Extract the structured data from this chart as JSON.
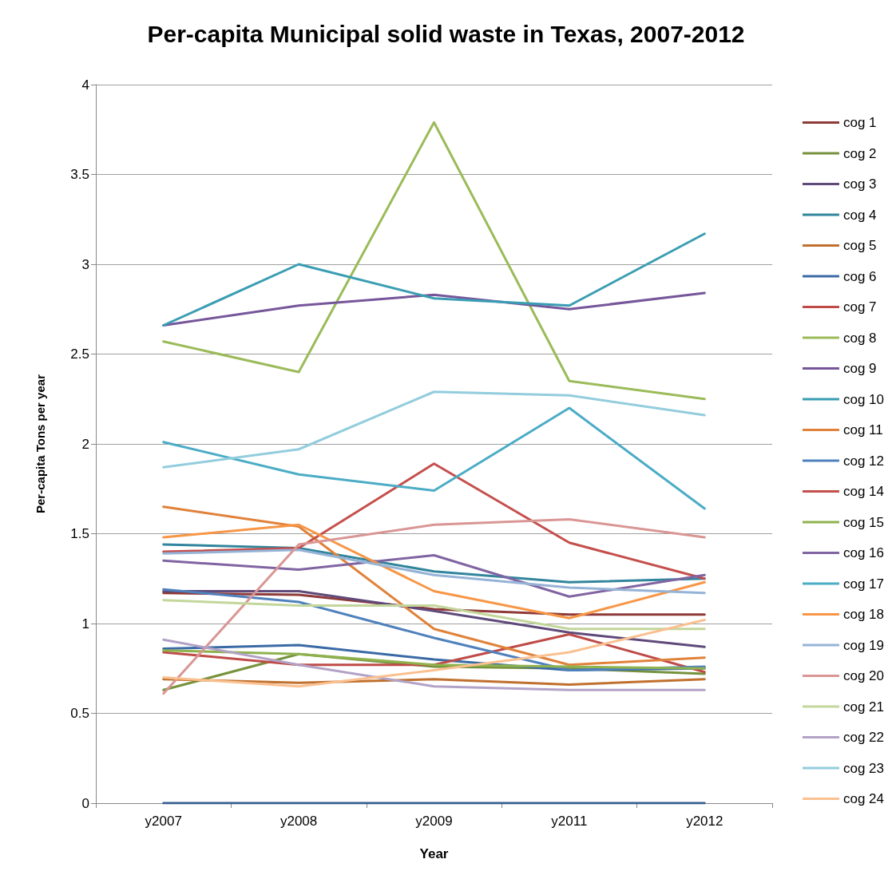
{
  "chart_data": {
    "type": "line",
    "title": "Per-capita Municipal solid waste in Texas, 2007-2012",
    "xlabel": "Year",
    "ylabel": "Per-capita Tons per year",
    "categories": [
      "y2007",
      "y2008",
      "y2009",
      "y2011",
      "y2012"
    ],
    "ylim": [
      0,
      4
    ],
    "yticks": [
      0,
      0.5,
      1,
      1.5,
      2,
      2.5,
      3,
      3.5,
      4
    ],
    "grid": "y",
    "legend": "right",
    "line_style": "solid",
    "series": [
      {
        "name": "cog 1",
        "color": "#8e3a38",
        "values": [
          1.17,
          1.16,
          1.08,
          1.05,
          1.05
        ]
      },
      {
        "name": "cog 2",
        "color": "#76923c",
        "values": [
          0.63,
          0.83,
          0.76,
          0.75,
          0.72
        ]
      },
      {
        "name": "cog 3",
        "color": "#5f4a7a",
        "values": [
          1.18,
          1.18,
          1.07,
          0.95,
          0.87
        ]
      },
      {
        "name": "cog 4",
        "color": "#31859c",
        "values": [
          1.44,
          1.42,
          1.29,
          1.23,
          1.25
        ]
      },
      {
        "name": "cog 5",
        "color": "#c0702e",
        "values": [
          0.69,
          0.67,
          0.69,
          0.66,
          0.69
        ]
      },
      {
        "name": "cog 6",
        "color": "#3a6aa6",
        "values": [
          0.86,
          0.88,
          0.8,
          0.74,
          0.75
        ]
      },
      {
        "name": "cog 7",
        "color": "#be4b48",
        "values": [
          0.84,
          0.77,
          0.77,
          0.94,
          0.73
        ]
      },
      {
        "name": "cog 8",
        "color": "#9bbb59",
        "values": [
          2.57,
          2.4,
          3.79,
          2.35,
          2.25
        ]
      },
      {
        "name": "cog 9",
        "color": "#76569a",
        "values": [
          2.66,
          2.77,
          2.83,
          2.75,
          2.84
        ]
      },
      {
        "name": "cog 10",
        "color": "#3a9db3",
        "values": [
          2.66,
          3.0,
          2.81,
          2.77,
          3.17
        ]
      },
      {
        "name": "cog 11",
        "color": "#e0823a",
        "values": [
          1.65,
          1.54,
          0.97,
          0.77,
          0.81
        ]
      },
      {
        "name": "cog 12",
        "color": "#4f81bd",
        "values": [
          1.19,
          1.12,
          0.92,
          0.74,
          0.76
        ]
      },
      {
        "name": "cog 14",
        "color": "#c44f4c",
        "values": [
          1.4,
          1.42,
          1.89,
          1.45,
          1.25
        ]
      },
      {
        "name": "cog 15",
        "color": "#8fb24e",
        "values": [
          0.85,
          0.83,
          0.77,
          0.76,
          0.75
        ]
      },
      {
        "name": "cog 16",
        "color": "#8064a2",
        "values": [
          1.35,
          1.3,
          1.38,
          1.15,
          1.27
        ]
      },
      {
        "name": "cog 17",
        "color": "#4bacc6",
        "values": [
          2.01,
          1.83,
          1.74,
          2.2,
          1.64
        ]
      },
      {
        "name": "cog 18",
        "color": "#f79646",
        "values": [
          1.48,
          1.55,
          1.18,
          1.03,
          1.23
        ]
      },
      {
        "name": "cog 19",
        "color": "#95b3d7",
        "values": [
          1.39,
          1.41,
          1.27,
          1.2,
          1.17
        ]
      },
      {
        "name": "cog 20",
        "color": "#d99694",
        "values": [
          0.61,
          1.44,
          1.55,
          1.58,
          1.48
        ]
      },
      {
        "name": "cog 21",
        "color": "#c3d69b",
        "values": [
          1.13,
          1.1,
          1.1,
          0.97,
          0.97
        ]
      },
      {
        "name": "cog 22",
        "color": "#b3a2c7",
        "values": [
          0.91,
          0.77,
          0.65,
          0.63,
          0.63
        ]
      },
      {
        "name": "cog 23",
        "color": "#93cddd",
        "values": [
          1.87,
          1.97,
          2.29,
          2.27,
          2.16
        ]
      },
      {
        "name": "cog 24",
        "color": "#fac090",
        "values": [
          0.7,
          0.65,
          0.74,
          0.84,
          1.02
        ]
      },
      {
        "color": "#365f91",
        "values": [
          0,
          0,
          0,
          0,
          0
        ]
      }
    ]
  }
}
